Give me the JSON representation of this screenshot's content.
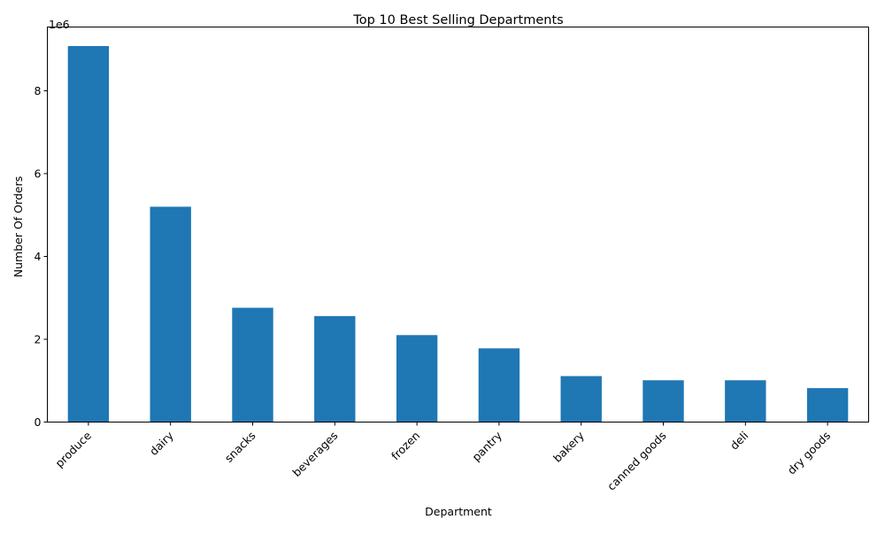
{
  "chart_data": {
    "type": "bar",
    "title": "Top 10 Best Selling Departments",
    "xlabel": "Department",
    "ylabel": "Number Of Orders",
    "y_offset_label": "1e6",
    "categories": [
      "produce",
      "dairy",
      "snacks",
      "beverages",
      "frozen",
      "pantry",
      "bakery",
      "canned goods",
      "deli",
      "dry goods"
    ],
    "values": [
      9080000,
      5200000,
      2760000,
      2560000,
      2100000,
      1780000,
      1110000,
      1010000,
      1010000,
      820000
    ],
    "y_ticks": [
      0,
      2,
      4,
      6,
      8
    ],
    "ylim": [
      0,
      9540000
    ],
    "bar_color": "#1f77b4",
    "grid": false,
    "legend": "none"
  }
}
